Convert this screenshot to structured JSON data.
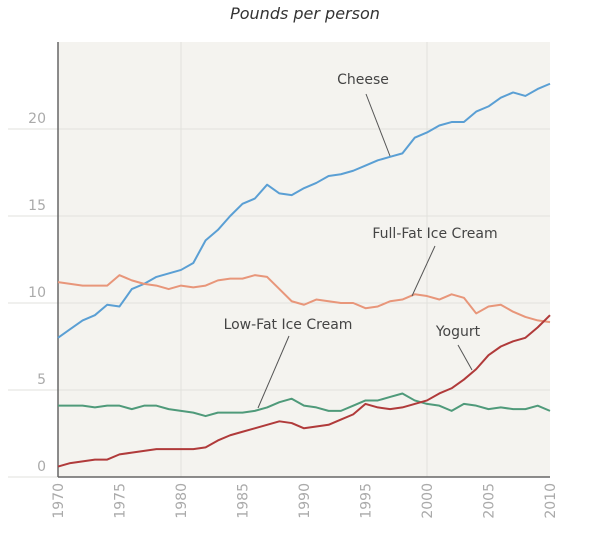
{
  "chart_data": {
    "type": "line",
    "title": "Pounds per person",
    "xlabel": "",
    "ylabel": "",
    "xlim": [
      1970,
      2010
    ],
    "ylim": [
      0,
      25
    ],
    "grid": true,
    "x_ticks": [
      "1970",
      "1975",
      "1980",
      "1985",
      "1990",
      "1995",
      "2000",
      "2005",
      "2010"
    ],
    "y_ticks": [
      "0",
      "5",
      "10",
      "15",
      "20"
    ],
    "x": [
      1970,
      1971,
      1972,
      1973,
      1974,
      1975,
      1976,
      1977,
      1978,
      1979,
      1980,
      1981,
      1982,
      1983,
      1984,
      1985,
      1986,
      1987,
      1988,
      1989,
      1990,
      1991,
      1992,
      1993,
      1994,
      1995,
      1996,
      1997,
      1998,
      1999,
      2000,
      2001,
      2002,
      2003,
      2004,
      2005,
      2006,
      2007,
      2008,
      2009,
      2010
    ],
    "series": [
      {
        "name": "Cheese",
        "color": "#5a9fd4",
        "values": [
          8.0,
          8.5,
          9.0,
          9.3,
          9.9,
          9.8,
          10.8,
          11.1,
          11.5,
          11.7,
          11.9,
          12.3,
          13.6,
          14.2,
          15.0,
          15.7,
          16.0,
          16.8,
          16.3,
          16.2,
          16.6,
          16.9,
          17.3,
          17.4,
          17.6,
          17.9,
          18.2,
          18.4,
          18.6,
          19.5,
          19.8,
          20.2,
          20.4,
          20.4,
          21.0,
          21.3,
          21.8,
          22.1,
          21.9,
          22.3,
          22.6
        ]
      },
      {
        "name": "Full-Fat Ice Cream",
        "color": "#e8967a",
        "values": [
          11.2,
          11.1,
          11.0,
          11.0,
          11.0,
          11.6,
          11.3,
          11.1,
          11.0,
          10.8,
          11.0,
          10.9,
          11.0,
          11.3,
          11.4,
          11.4,
          11.6,
          11.5,
          10.8,
          10.1,
          9.9,
          10.2,
          10.1,
          10.0,
          10.0,
          9.7,
          9.8,
          10.1,
          10.2,
          10.5,
          10.4,
          10.2,
          10.5,
          10.3,
          9.4,
          9.8,
          9.9,
          9.5,
          9.2,
          9.0,
          8.9
        ]
      },
      {
        "name": "Low-Fat Ice Cream",
        "color": "#4f9a7a",
        "values": [
          4.1,
          4.1,
          4.1,
          4.0,
          4.1,
          4.1,
          3.9,
          4.1,
          4.1,
          3.9,
          3.8,
          3.7,
          3.5,
          3.7,
          3.7,
          3.7,
          3.8,
          4.0,
          4.3,
          4.5,
          4.1,
          4.0,
          3.8,
          3.8,
          4.1,
          4.4,
          4.4,
          4.6,
          4.8,
          4.4,
          4.2,
          4.1,
          3.8,
          4.2,
          4.1,
          3.9,
          4.0,
          3.9,
          3.9,
          4.1,
          3.8
        ]
      },
      {
        "name": "Yogurt",
        "color": "#b03a3a",
        "values": [
          0.6,
          0.8,
          0.9,
          1.0,
          1.0,
          1.3,
          1.4,
          1.5,
          1.6,
          1.6,
          1.6,
          1.6,
          1.7,
          2.1,
          2.4,
          2.6,
          2.8,
          3.0,
          3.2,
          3.1,
          2.8,
          2.9,
          3.0,
          3.3,
          3.6,
          4.2,
          4.0,
          3.9,
          4.0,
          4.2,
          4.4,
          4.8,
          5.1,
          5.6,
          6.2,
          7.0,
          7.5,
          7.8,
          8.0,
          8.6,
          9.3
        ]
      }
    ],
    "colors": {
      "plot_background": "#f4f3ef",
      "axis": "#666666",
      "grid": "#e2e1dc"
    }
  }
}
